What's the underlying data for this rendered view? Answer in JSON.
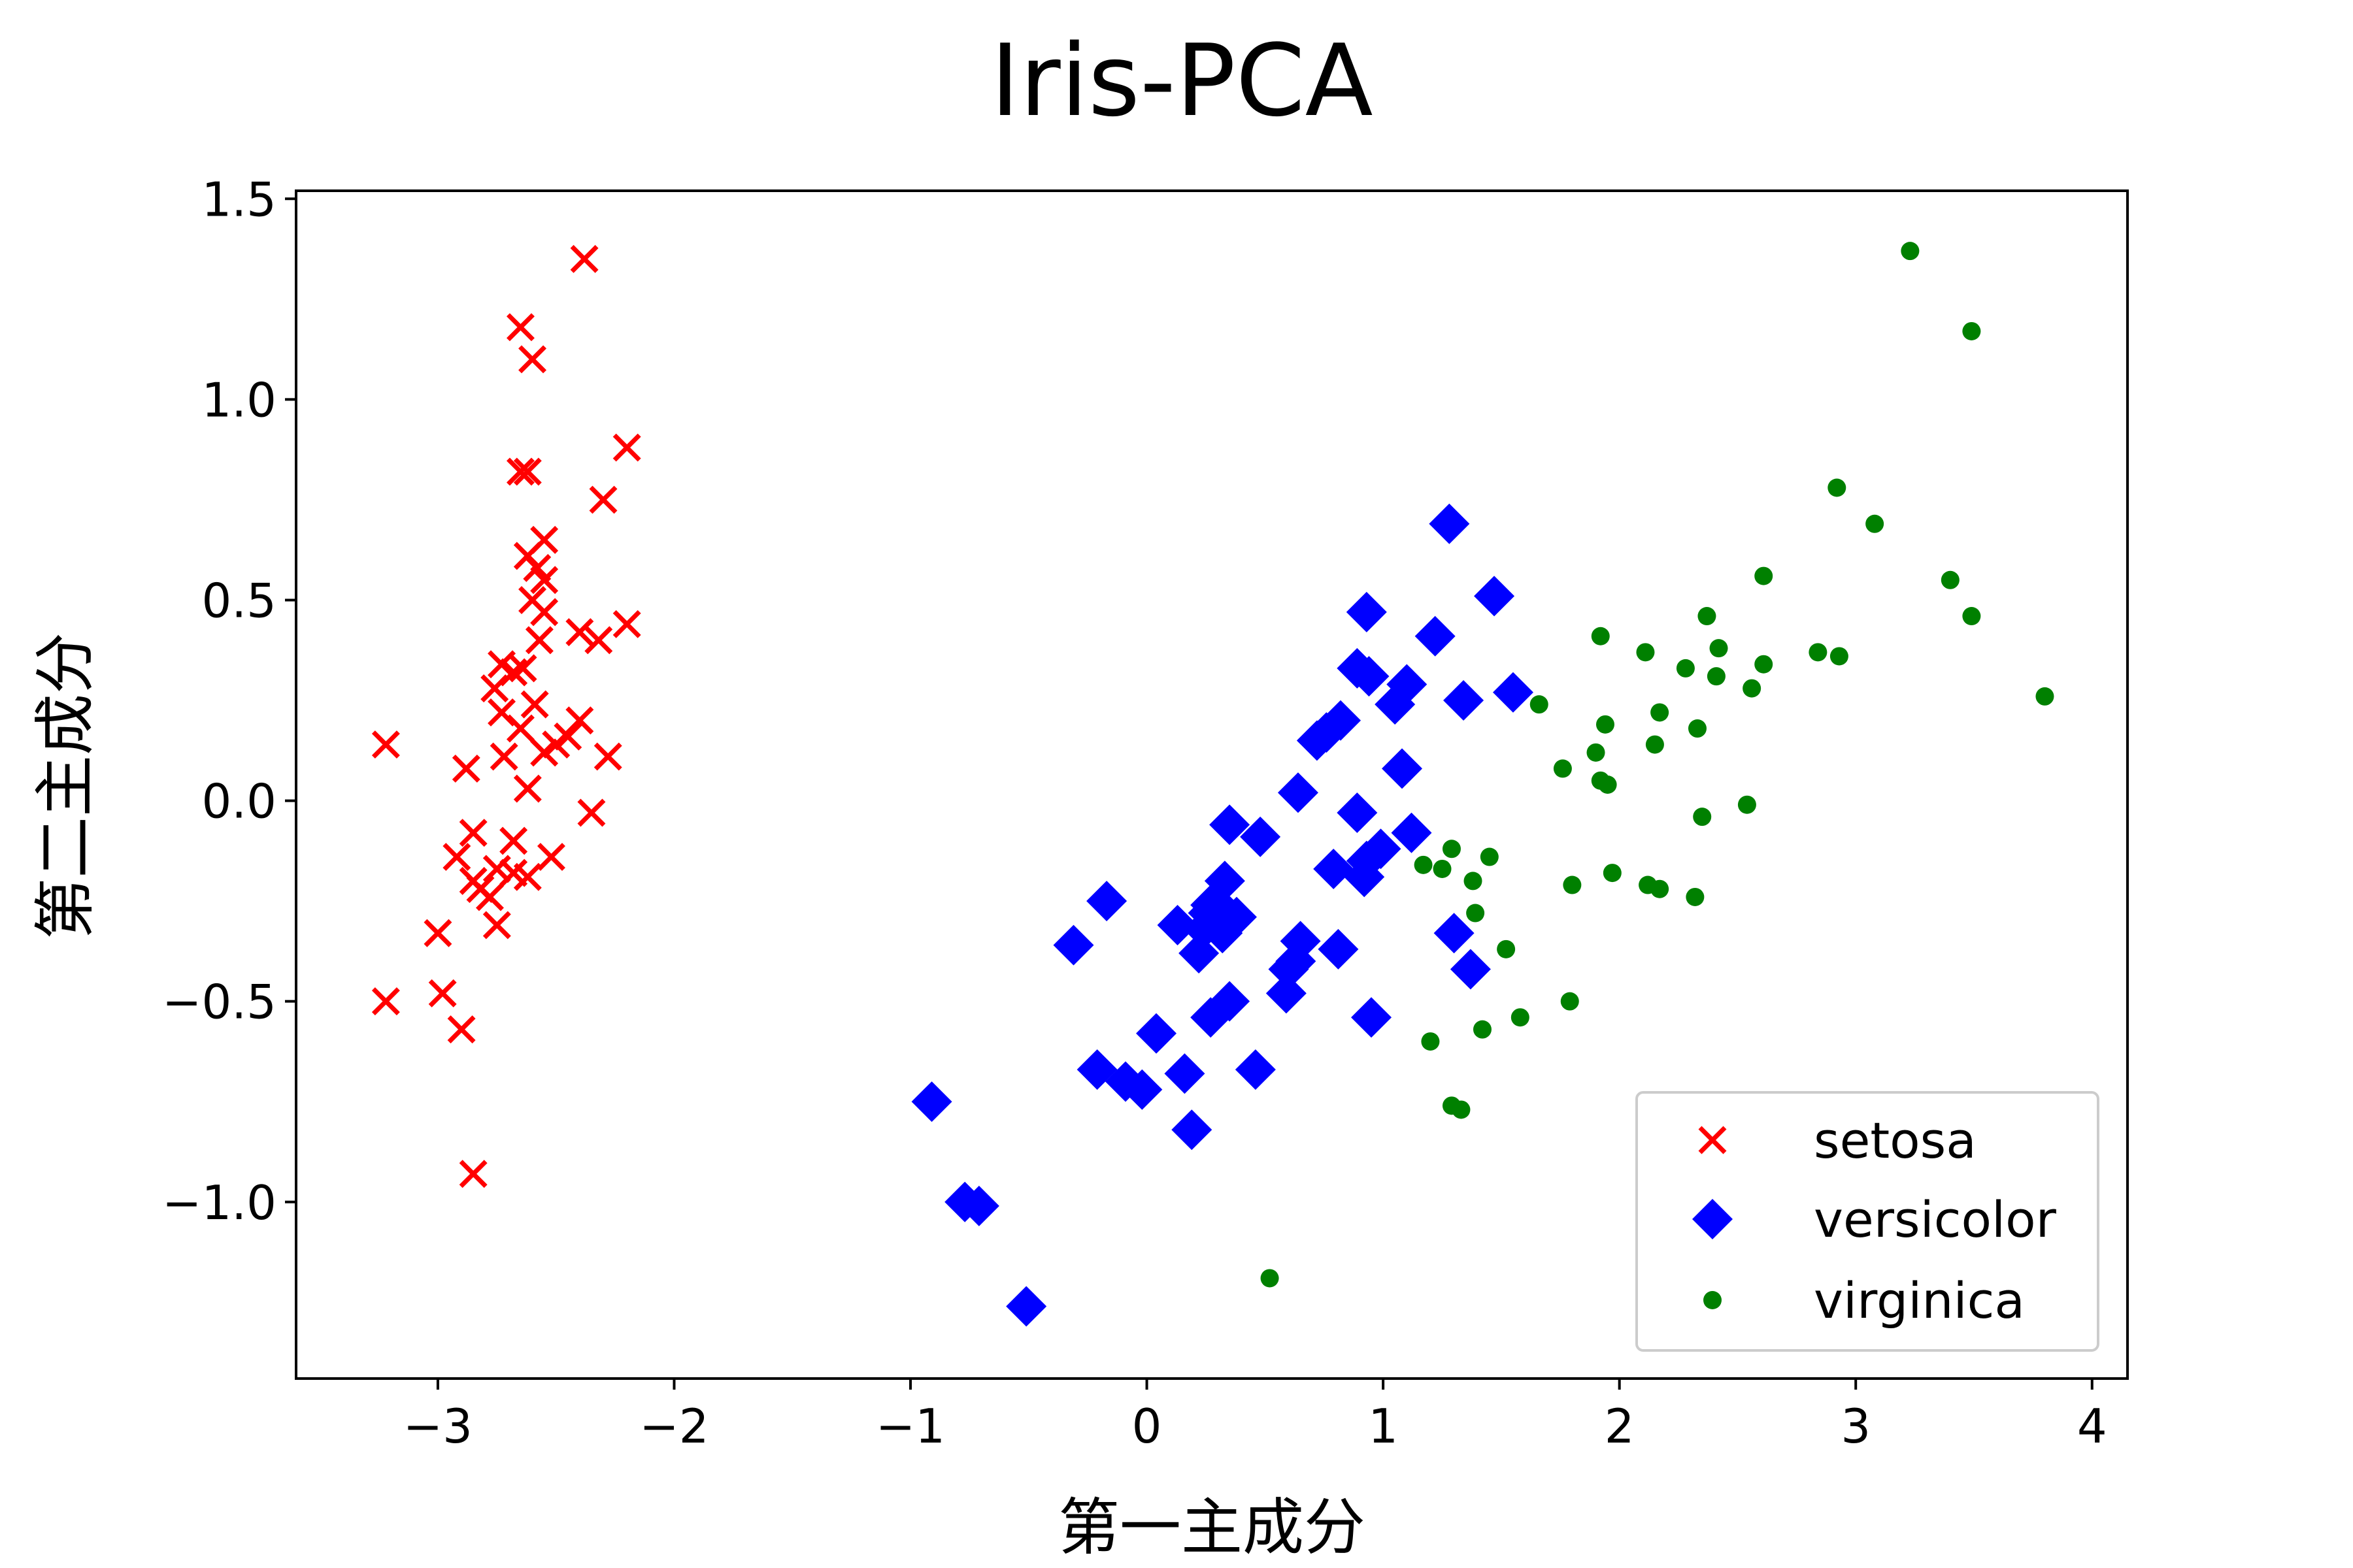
{
  "chart_data": {
    "type": "scatter",
    "title": "Iris-PCA",
    "xlabel": "第一主成分",
    "ylabel": "第二主成分",
    "xlim": [
      -3.6,
      4.15
    ],
    "ylim": [
      -1.44,
      1.52
    ],
    "xticks": [
      -3,
      -2,
      -1,
      0,
      1,
      2,
      3,
      4
    ],
    "xtick_labels": [
      "−3",
      "−2",
      "−1",
      "0",
      "1",
      "2",
      "3",
      "4"
    ],
    "yticks": [
      -1.0,
      -0.5,
      0.0,
      0.5,
      1.0,
      1.5
    ],
    "ytick_labels": [
      "−1.0",
      "−0.5",
      "0.0",
      "0.5",
      "1.0",
      "1.5"
    ],
    "grid": false,
    "legend_position": "lower-right",
    "series": [
      {
        "name": "setosa",
        "marker": "x",
        "color": "#ff0000",
        "points": [
          [
            -2.38,
            1.35
          ],
          [
            -2.65,
            1.18
          ],
          [
            -2.6,
            1.1
          ],
          [
            -2.2,
            0.88
          ],
          [
            -2.65,
            0.82
          ],
          [
            -2.62,
            0.82
          ],
          [
            -2.3,
            0.75
          ],
          [
            -2.55,
            0.65
          ],
          [
            -2.62,
            0.61
          ],
          [
            -2.58,
            0.58
          ],
          [
            -2.55,
            0.55
          ],
          [
            -2.6,
            0.5
          ],
          [
            -2.55,
            0.47
          ],
          [
            -2.2,
            0.44
          ],
          [
            -2.4,
            0.42
          ],
          [
            -2.57,
            0.4
          ],
          [
            -2.32,
            0.4
          ],
          [
            -2.73,
            0.34
          ],
          [
            -2.64,
            0.33
          ],
          [
            -2.68,
            0.32
          ],
          [
            -2.76,
            0.28
          ],
          [
            -2.59,
            0.24
          ],
          [
            -2.73,
            0.22
          ],
          [
            -2.4,
            0.2
          ],
          [
            -2.65,
            0.18
          ],
          [
            -2.45,
            0.16
          ],
          [
            -2.5,
            0.14
          ],
          [
            -3.22,
            0.14
          ],
          [
            -2.55,
            0.12
          ],
          [
            -2.72,
            0.11
          ],
          [
            -2.28,
            0.11
          ],
          [
            -2.88,
            0.08
          ],
          [
            -2.62,
            0.03
          ],
          [
            -2.35,
            -0.03
          ],
          [
            -2.85,
            -0.08
          ],
          [
            -2.68,
            -0.1
          ],
          [
            -2.52,
            -0.14
          ],
          [
            -2.92,
            -0.14
          ],
          [
            -2.75,
            -0.17
          ],
          [
            -2.68,
            -0.18
          ],
          [
            -2.62,
            -0.19
          ],
          [
            -2.85,
            -0.2
          ],
          [
            -2.82,
            -0.22
          ],
          [
            -2.78,
            -0.24
          ],
          [
            -2.75,
            -0.31
          ],
          [
            -3.0,
            -0.33
          ],
          [
            -2.98,
            -0.48
          ],
          [
            -3.22,
            -0.5
          ],
          [
            -2.9,
            -0.57
          ],
          [
            -2.85,
            -0.93
          ]
        ]
      },
      {
        "name": "versicolor",
        "marker": "diamond",
        "color": "#0000ff",
        "points": [
          [
            1.28,
            0.69
          ],
          [
            1.47,
            0.51
          ],
          [
            0.93,
            0.47
          ],
          [
            1.22,
            0.41
          ],
          [
            0.89,
            0.33
          ],
          [
            0.94,
            0.31
          ],
          [
            1.1,
            0.29
          ],
          [
            1.55,
            0.27
          ],
          [
            1.34,
            0.25
          ],
          [
            1.05,
            0.24
          ],
          [
            0.82,
            0.2
          ],
          [
            0.76,
            0.17
          ],
          [
            0.72,
            0.15
          ],
          [
            1.08,
            0.08
          ],
          [
            0.64,
            0.02
          ],
          [
            0.89,
            -0.03
          ],
          [
            1.12,
            -0.08
          ],
          [
            0.48,
            -0.09
          ],
          [
            0.35,
            -0.06
          ],
          [
            0.99,
            -0.12
          ],
          [
            0.93,
            -0.15
          ],
          [
            0.79,
            -0.17
          ],
          [
            0.92,
            -0.19
          ],
          [
            0.33,
            -0.2
          ],
          [
            -0.17,
            -0.25
          ],
          [
            0.27,
            -0.26
          ],
          [
            0.32,
            -0.27
          ],
          [
            0.26,
            -0.28
          ],
          [
            0.38,
            -0.29
          ],
          [
            0.28,
            -0.3
          ],
          [
            0.13,
            -0.31
          ],
          [
            0.24,
            -0.32
          ],
          [
            0.32,
            -0.33
          ],
          [
            1.3,
            -0.33
          ],
          [
            0.65,
            -0.35
          ],
          [
            -0.31,
            -0.36
          ],
          [
            0.81,
            -0.37
          ],
          [
            0.22,
            -0.38
          ],
          [
            0.63,
            -0.4
          ],
          [
            0.6,
            -0.42
          ],
          [
            1.37,
            -0.42
          ],
          [
            0.59,
            -0.48
          ],
          [
            0.35,
            -0.5
          ],
          [
            0.27,
            -0.54
          ],
          [
            0.95,
            -0.54
          ],
          [
            0.04,
            -0.58
          ],
          [
            -0.21,
            -0.67
          ],
          [
            0.46,
            -0.67
          ],
          [
            0.16,
            -0.68
          ],
          [
            -0.09,
            -0.7
          ],
          [
            -0.02,
            -0.72
          ],
          [
            0.19,
            -0.82
          ],
          [
            -0.91,
            -0.75
          ],
          [
            -0.77,
            -1.0
          ],
          [
            -0.71,
            -1.01
          ],
          [
            -0.51,
            -1.26
          ]
        ]
      },
      {
        "name": "virginica",
        "marker": "circle",
        "color": "#008000",
        "points": [
          [
            3.23,
            1.37
          ],
          [
            3.49,
            1.17
          ],
          [
            2.92,
            0.78
          ],
          [
            3.08,
            0.69
          ],
          [
            2.61,
            0.56
          ],
          [
            3.4,
            0.55
          ],
          [
            2.37,
            0.46
          ],
          [
            3.49,
            0.46
          ],
          [
            1.92,
            0.41
          ],
          [
            2.42,
            0.38
          ],
          [
            2.84,
            0.37
          ],
          [
            2.11,
            0.37
          ],
          [
            2.93,
            0.36
          ],
          [
            2.61,
            0.34
          ],
          [
            2.28,
            0.33
          ],
          [
            2.41,
            0.31
          ],
          [
            2.56,
            0.28
          ],
          [
            3.8,
            0.26
          ],
          [
            1.66,
            0.24
          ],
          [
            2.17,
            0.22
          ],
          [
            1.94,
            0.19
          ],
          [
            2.33,
            0.18
          ],
          [
            2.15,
            0.14
          ],
          [
            1.9,
            0.12
          ],
          [
            1.76,
            0.08
          ],
          [
            1.92,
            0.05
          ],
          [
            1.95,
            0.04
          ],
          [
            2.54,
            -0.01
          ],
          [
            2.35,
            -0.04
          ],
          [
            1.29,
            -0.12
          ],
          [
            1.45,
            -0.14
          ],
          [
            1.17,
            -0.16
          ],
          [
            1.25,
            -0.17
          ],
          [
            1.97,
            -0.18
          ],
          [
            1.38,
            -0.2
          ],
          [
            2.12,
            -0.21
          ],
          [
            1.8,
            -0.21
          ],
          [
            2.17,
            -0.22
          ],
          [
            2.32,
            -0.24
          ],
          [
            1.39,
            -0.28
          ],
          [
            1.52,
            -0.37
          ],
          [
            1.79,
            -0.5
          ],
          [
            1.58,
            -0.54
          ],
          [
            1.42,
            -0.57
          ],
          [
            1.2,
            -0.6
          ],
          [
            1.29,
            -0.76
          ],
          [
            1.33,
            -0.77
          ],
          [
            0.52,
            -1.19
          ]
        ]
      }
    ]
  }
}
